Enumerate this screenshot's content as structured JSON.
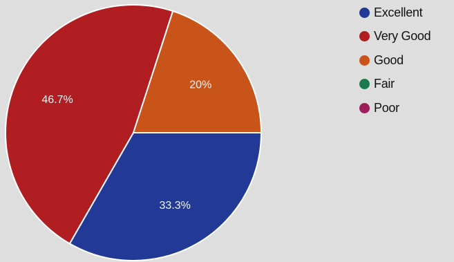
{
  "chart_data": {
    "type": "pie",
    "categories": [
      "Excellent",
      "Very Good",
      "Good",
      "Fair",
      "Poor"
    ],
    "values": [
      33.3,
      46.7,
      20,
      0,
      0
    ],
    "data_labels": [
      "33.3%",
      "46.7%",
      "20%",
      "",
      ""
    ],
    "colors": [
      "#223a96",
      "#b01e22",
      "#c9541a",
      "#1a7a4e",
      "#9c1e5a"
    ],
    "legend_position": "right"
  },
  "legend": {
    "items": [
      {
        "label": "Excellent",
        "color": "#223a96"
      },
      {
        "label": "Very Good",
        "color": "#b01e22"
      },
      {
        "label": "Good",
        "color": "#c9541a"
      },
      {
        "label": "Fair",
        "color": "#1a7a4e"
      },
      {
        "label": "Poor",
        "color": "#9c1e5a"
      }
    ]
  }
}
